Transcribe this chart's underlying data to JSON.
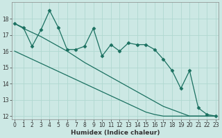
{
  "xlabel": "Humidex (Indice chaleur)",
  "ylabel": "",
  "bg_color": "#cce8e4",
  "grid_color": "#b0d8d0",
  "line_color": "#1a7060",
  "x_data": [
    0,
    1,
    2,
    3,
    4,
    5,
    6,
    7,
    8,
    9,
    10,
    11,
    12,
    13,
    14,
    15,
    16,
    17,
    18,
    19,
    20,
    21,
    22,
    23
  ],
  "y_jagged": [
    17.7,
    17.45,
    16.3,
    17.3,
    18.5,
    17.45,
    16.1,
    16.1,
    16.3,
    17.4,
    15.7,
    16.4,
    16.0,
    16.5,
    16.4,
    16.4,
    16.1,
    15.5,
    14.8,
    13.7,
    14.8,
    12.5,
    12.1,
    12.0
  ],
  "y_upper": [
    17.7,
    17.4,
    17.15,
    16.9,
    16.6,
    16.3,
    16.0,
    15.65,
    15.3,
    15.0,
    14.7,
    14.4,
    14.1,
    13.8,
    13.5,
    13.2,
    12.9,
    12.6,
    12.4,
    12.2,
    12.0,
    12.0,
    12.0,
    12.0
  ],
  "y_lower": [
    16.0,
    15.75,
    15.5,
    15.25,
    15.0,
    14.75,
    14.5,
    14.25,
    14.0,
    13.75,
    13.5,
    13.25,
    13.0,
    12.75,
    12.5,
    12.25,
    12.1,
    12.0,
    12.0,
    12.0,
    12.0,
    12.0,
    12.0,
    12.0
  ],
  "xlim": [
    -0.3,
    23.3
  ],
  "ylim": [
    11.8,
    19.0
  ],
  "yticks": [
    12,
    13,
    14,
    15,
    16,
    17,
    18
  ],
  "xticks": [
    0,
    1,
    2,
    3,
    4,
    5,
    6,
    7,
    8,
    9,
    10,
    11,
    12,
    13,
    14,
    15,
    16,
    17,
    18,
    19,
    20,
    21,
    22,
    23
  ],
  "xlabel_fontsize": 6.5,
  "tick_fontsize": 5.5
}
